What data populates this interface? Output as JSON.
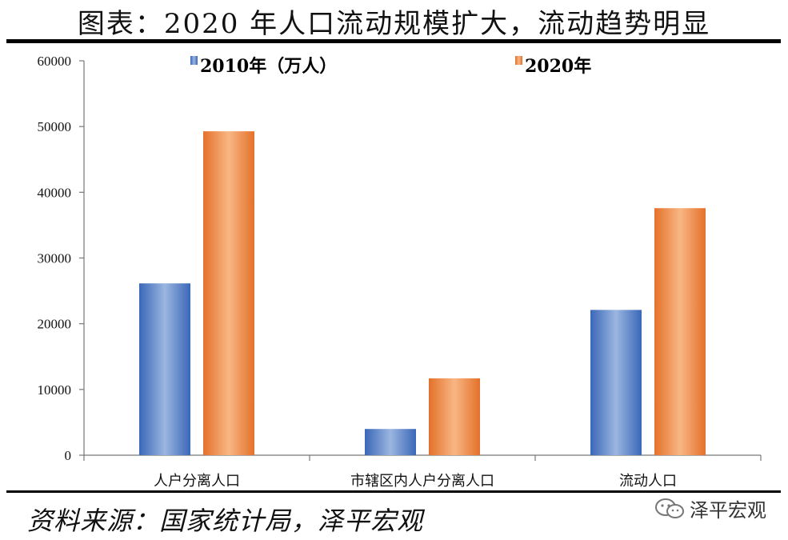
{
  "header": {
    "title": "图表：2020 年人口流动规模扩大，流动趋势明显"
  },
  "footer": {
    "source": "资料来源：国家统计局，泽平宏观",
    "watermark": "泽平宏观"
  },
  "colors": {
    "series_2010": "#3f6fc0",
    "series_2020": "#ee7d31",
    "rule": "#000000"
  },
  "chart_data": {
    "type": "bar",
    "categories": [
      "人户分离人口",
      "市辖区内人户分离人口",
      "流动人口"
    ],
    "series": [
      {
        "name": "2010年（万人）",
        "values": [
          26139,
          3991,
          22103
        ]
      },
      {
        "name": "2020年",
        "values": [
          49276,
          11694,
          37582
        ]
      }
    ],
    "ylim": [
      0,
      60000
    ],
    "yticks": [
      "0",
      "10000",
      "20000",
      "30000",
      "40000",
      "50000",
      "60000"
    ],
    "grid": false,
    "legend": "top"
  }
}
